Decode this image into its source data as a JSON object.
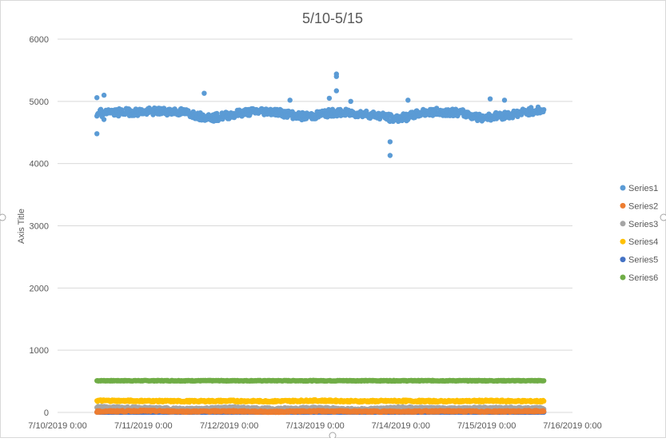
{
  "chart_data": {
    "type": "scatter",
    "title": "5/10-5/15",
    "xlabel": "",
    "ylabel": "Axis Title",
    "ylim": [
      0,
      6000
    ],
    "yticks": [
      "0",
      "1000",
      "2000",
      "3000",
      "4000",
      "5000",
      "6000"
    ],
    "xlim": [
      "7/10/2019 0:00",
      "7/16/2019 0:00"
    ],
    "xticks": [
      "7/10/2019 0:00",
      "7/11/2019 0:00",
      "7/12/2019 0:00",
      "7/13/2019 0:00",
      "7/14/2019 0:00",
      "7/15/2019 0:00",
      "7/16/2019 0:00"
    ],
    "grid": "horizontal",
    "legend_position": "right",
    "series": [
      {
        "name": "Series1",
        "color": "#5B9BD5",
        "points": [
          [
            "7/10/2019 11:00",
            4750
          ],
          [
            "7/10/2019 12:00",
            4820
          ],
          [
            "7/10/2019 13:00",
            4760
          ],
          [
            "7/10/2019 14:00",
            4850
          ],
          [
            "7/10/2019 16:00",
            4820
          ],
          [
            "7/10/2019 20:00",
            4830
          ],
          [
            "7/11/2019 0:00",
            4830
          ],
          [
            "7/11/2019 4:00",
            4840
          ],
          [
            "7/11/2019 8:00",
            4840
          ],
          [
            "7/11/2019 12:00",
            4820
          ],
          [
            "7/11/2019 16:00",
            4760
          ],
          [
            "7/11/2019 20:00",
            4740
          ],
          [
            "7/12/2019 0:00",
            4780
          ],
          [
            "7/12/2019 4:00",
            4820
          ],
          [
            "7/12/2019 8:00",
            4840
          ],
          [
            "7/12/2019 12:00",
            4840
          ],
          [
            "7/12/2019 16:00",
            4800
          ],
          [
            "7/12/2019 20:00",
            4760
          ],
          [
            "7/13/2019 0:00",
            4770
          ],
          [
            "7/13/2019 2:00",
            4800
          ],
          [
            "7/13/2019 6:00",
            4820
          ],
          [
            "7/13/2019 10:00",
            4810
          ],
          [
            "7/13/2019 14:00",
            4800
          ],
          [
            "7/13/2019 18:00",
            4770
          ],
          [
            "7/13/2019 22:00",
            4720
          ],
          [
            "7/14/2019 2:00",
            4750
          ],
          [
            "7/14/2019 6:00",
            4820
          ],
          [
            "7/14/2019 10:00",
            4830
          ],
          [
            "7/14/2019 14:00",
            4830
          ],
          [
            "7/14/2019 18:00",
            4800
          ],
          [
            "7/14/2019 22:00",
            4740
          ],
          [
            "7/15/2019 2:00",
            4760
          ],
          [
            "7/15/2019 6:00",
            4780
          ],
          [
            "7/15/2019 10:00",
            4820
          ],
          [
            "7/15/2019 14:00",
            4860
          ],
          [
            "7/15/2019 16:00",
            4850
          ]
        ],
        "outliers": [
          [
            "7/10/2019 11:00",
            4480
          ],
          [
            "7/10/2019 11:00",
            5060
          ],
          [
            "7/10/2019 13:00",
            5100
          ],
          [
            "7/11/2019 17:00",
            5130
          ],
          [
            "7/12/2019 17:00",
            5020
          ],
          [
            "7/13/2019 4:00",
            5050
          ],
          [
            "7/13/2019 6:00",
            5400
          ],
          [
            "7/13/2019 6:00",
            5440
          ],
          [
            "7/13/2019 6:00",
            5170
          ],
          [
            "7/13/2019 10:00",
            5000
          ],
          [
            "7/13/2019 21:00",
            4350
          ],
          [
            "7/13/2019 21:00",
            4130
          ],
          [
            "7/14/2019 2:00",
            5020
          ],
          [
            "7/15/2019 1:00",
            5040
          ],
          [
            "7/15/2019 5:00",
            5020
          ]
        ]
      },
      {
        "name": "Series2",
        "color": "#ED7D31",
        "points": [
          [
            "7/10/2019 11:00",
            15
          ],
          [
            "7/11/2019 0:00",
            25
          ],
          [
            "7/11/2019 12:00",
            15
          ],
          [
            "7/12/2019 0:00",
            20
          ],
          [
            "7/12/2019 12:00",
            10
          ],
          [
            "7/13/2019 0:00",
            20
          ],
          [
            "7/13/2019 12:00",
            15
          ],
          [
            "7/14/2019 0:00",
            15
          ],
          [
            "7/14/2019 12:00",
            20
          ],
          [
            "7/15/2019 0:00",
            15
          ],
          [
            "7/15/2019 16:00",
            20
          ]
        ]
      },
      {
        "name": "Series3",
        "color": "#A5A5A5",
        "points": [
          [
            "7/10/2019 11:00",
            80
          ],
          [
            "7/11/2019 0:00",
            70
          ],
          [
            "7/11/2019 12:00",
            50
          ],
          [
            "7/12/2019 0:00",
            75
          ],
          [
            "7/12/2019 12:00",
            55
          ],
          [
            "7/13/2019 0:00",
            70
          ],
          [
            "7/13/2019 12:00",
            45
          ],
          [
            "7/14/2019 0:00",
            75
          ],
          [
            "7/14/2019 12:00",
            60
          ],
          [
            "7/15/2019 0:00",
            70
          ],
          [
            "7/15/2019 16:00",
            65
          ]
        ]
      },
      {
        "name": "Series4",
        "color": "#FFC000",
        "points": [
          [
            "7/10/2019 11:00",
            190
          ],
          [
            "7/11/2019 0:00",
            185
          ],
          [
            "7/11/2019 12:00",
            180
          ],
          [
            "7/12/2019 0:00",
            185
          ],
          [
            "7/12/2019 12:00",
            180
          ],
          [
            "7/13/2019 0:00",
            190
          ],
          [
            "7/13/2019 12:00",
            180
          ],
          [
            "7/14/2019 0:00",
            185
          ],
          [
            "7/14/2019 12:00",
            180
          ],
          [
            "7/15/2019 0:00",
            185
          ],
          [
            "7/15/2019 16:00",
            180
          ]
        ]
      },
      {
        "name": "Series5",
        "color": "#4472C4",
        "points": [
          [
            "7/10/2019 11:00",
            5
          ],
          [
            "7/12/2019 0:00",
            5
          ],
          [
            "7/13/2019 12:00",
            5
          ],
          [
            "7/15/2019 16:00",
            5
          ]
        ]
      },
      {
        "name": "Series6",
        "color": "#70AD47",
        "points": [
          [
            "7/10/2019 11:00",
            510
          ],
          [
            "7/11/2019 12:00",
            510
          ],
          [
            "7/13/2019 0:00",
            510
          ],
          [
            "7/14/2019 12:00",
            510
          ],
          [
            "7/15/2019 16:00",
            510
          ]
        ]
      }
    ]
  }
}
